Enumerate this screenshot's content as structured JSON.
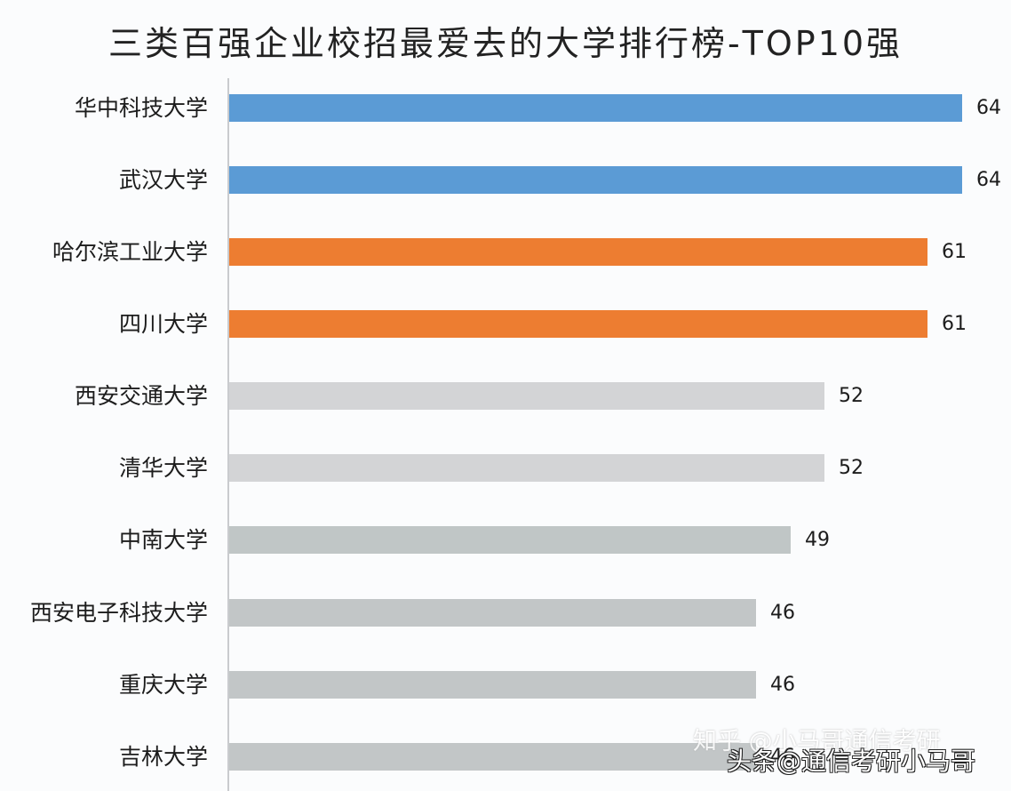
{
  "title": "三类百强企业校招最爱去的大学排行榜-TOP10强",
  "colors": {
    "blue": "#5b9bd5",
    "orange": "#ed7d31",
    "gray_light": "#d3d4d6",
    "gray_dark": "#bfc4c4"
  },
  "rows": [
    {
      "label": "华中科技大学",
      "value": "64",
      "color": "#5b9bd5"
    },
    {
      "label": "武汉大学",
      "value": "64",
      "color": "#5b9bd5"
    },
    {
      "label": "哈尔滨工业大学",
      "value": "61",
      "color": "#ed7d31"
    },
    {
      "label": "四川大学",
      "value": "61",
      "color": "#ed7d31"
    },
    {
      "label": "西安交通大学",
      "value": "52",
      "color": "#d3d4d6"
    },
    {
      "label": "清华大学",
      "value": "52",
      "color": "#d3d4d6"
    },
    {
      "label": "中南大学",
      "value": "49",
      "color": "#c0c6c6"
    },
    {
      "label": "西安电子科技大学",
      "value": "46",
      "color": "#c2c6c7"
    },
    {
      "label": "重庆大学",
      "value": "46",
      "color": "#c2c6c7"
    },
    {
      "label": "吉林大学",
      "value": "46",
      "color": "#c2c6c7"
    }
  ],
  "watermarks": {
    "zhihu": "知乎 @小马哥通信考研",
    "toutiao": "头条@通信考研小马哥"
  },
  "chart_data": {
    "type": "bar",
    "orientation": "horizontal",
    "title": "三类百强企业校招最爱去的大学排行榜-TOP10强",
    "categories": [
      "华中科技大学",
      "武汉大学",
      "哈尔滨工业大学",
      "四川大学",
      "西安交通大学",
      "清华大学",
      "中南大学",
      "西安电子科技大学",
      "重庆大学",
      "吉林大学"
    ],
    "values": [
      64,
      64,
      61,
      61,
      52,
      52,
      49,
      46,
      46,
      46
    ],
    "xlabel": "",
    "ylabel": "",
    "xlim": [
      0,
      64
    ],
    "grid": false,
    "legend": "none",
    "data_labels": true
  }
}
